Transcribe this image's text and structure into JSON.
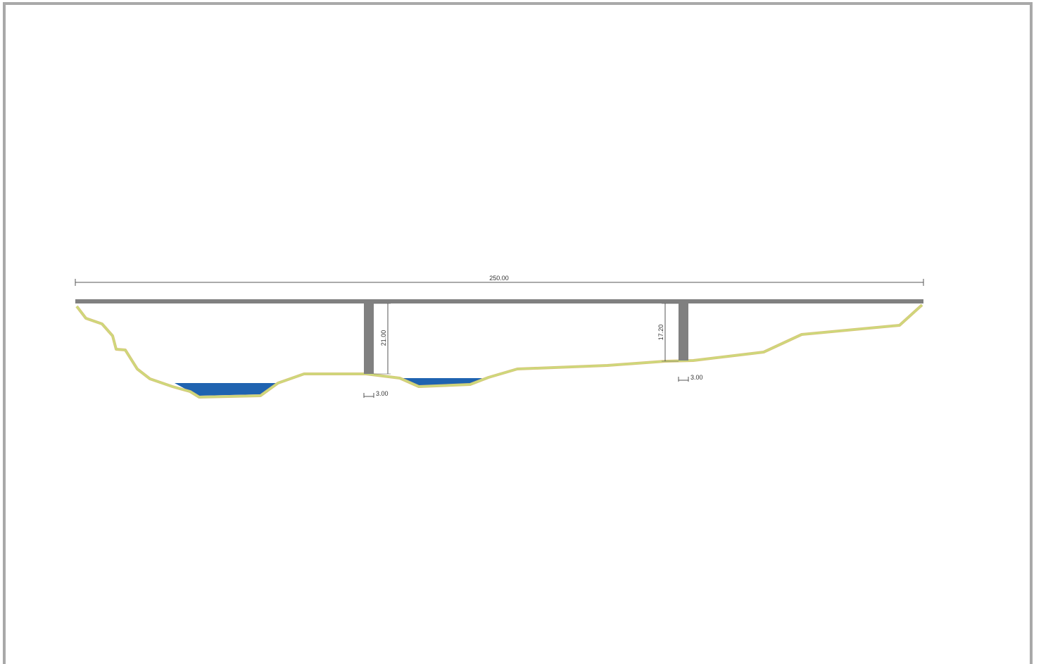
{
  "drawing": {
    "dimensions": {
      "total_span": "250.00",
      "pier1_height": "21.00",
      "pier2_height": "17.20",
      "pier1_width": "3.00",
      "pier2_width": "3.00"
    },
    "colors": {
      "frame": "#a9a9a9",
      "deck": "#808080",
      "pier": "#808080",
      "ground_outer": "#d8c77a",
      "ground_inner": "#c8e07a",
      "water": "#1f63b0",
      "dimension_line": "#555555"
    }
  }
}
